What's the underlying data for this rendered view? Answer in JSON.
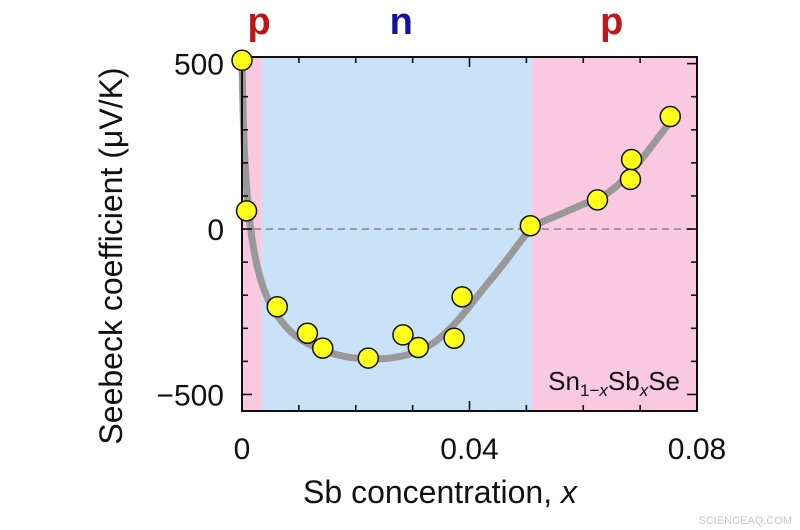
{
  "chart_data": {
    "type": "scatter",
    "xlabel": "Sb concentration, ",
    "xlabel_var": "x",
    "ylabel": "Seebeck coefficient (μV/K)",
    "xlim": [
      0,
      0.08
    ],
    "ylim": [
      -550,
      520
    ],
    "x_ticks": [
      0,
      0.04,
      0.08
    ],
    "x_tick_labels": [
      "0",
      "0.04",
      "0.08"
    ],
    "y_ticks": [
      500,
      0,
      -500
    ],
    "y_tick_labels": [
      "500",
      "0",
      "−500"
    ],
    "zero_line": "dashed",
    "regions": [
      {
        "label": "p",
        "from": 0,
        "to": 0.0035,
        "color": "#f9c9e1",
        "label_color": "#c0141b"
      },
      {
        "label": "n",
        "from": 0.0035,
        "to": 0.051,
        "color": "#c9e2f8",
        "label_color": "#13139c"
      },
      {
        "label": "p",
        "from": 0.051,
        "to": 0.08,
        "color": "#f9c9e1",
        "label_color": "#c0141b"
      }
    ],
    "region_label_positions": [
      0.003,
      0.028,
      0.065
    ],
    "series": [
      {
        "marker_color": "#ffff1a",
        "marker_edge": "#111111",
        "points": [
          {
            "x": 0.0,
            "y": 510
          },
          {
            "x": 0.0008,
            "y": 55
          },
          {
            "x": 0.0062,
            "y": -235
          },
          {
            "x": 0.0115,
            "y": -315
          },
          {
            "x": 0.0142,
            "y": -360
          },
          {
            "x": 0.0222,
            "y": -390
          },
          {
            "x": 0.0283,
            "y": -320
          },
          {
            "x": 0.031,
            "y": -358
          },
          {
            "x": 0.0373,
            "y": -330
          },
          {
            "x": 0.0387,
            "y": -205
          },
          {
            "x": 0.0507,
            "y": 10
          },
          {
            "x": 0.0625,
            "y": 88
          },
          {
            "x": 0.0683,
            "y": 150
          },
          {
            "x": 0.0685,
            "y": 210
          },
          {
            "x": 0.0753,
            "y": 340
          }
        ]
      }
    ],
    "guide_curve": {
      "color": "#999999",
      "points": [
        [
          0.0,
          500
        ],
        [
          0.0004,
          250
        ],
        [
          0.0012,
          50
        ],
        [
          0.0025,
          -100
        ],
        [
          0.0045,
          -210
        ],
        [
          0.007,
          -280
        ],
        [
          0.01,
          -330
        ],
        [
          0.014,
          -365
        ],
        [
          0.018,
          -385
        ],
        [
          0.022,
          -392
        ],
        [
          0.026,
          -390
        ],
        [
          0.03,
          -375
        ],
        [
          0.034,
          -340
        ],
        [
          0.038,
          -275
        ],
        [
          0.042,
          -190
        ],
        [
          0.046,
          -105
        ],
        [
          0.05,
          -15
        ],
        [
          0.052,
          15
        ],
        [
          0.056,
          45
        ],
        [
          0.06,
          75
        ],
        [
          0.064,
          105
        ],
        [
          0.068,
          165
        ],
        [
          0.072,
          250
        ],
        [
          0.0755,
          330
        ]
      ]
    },
    "annotation": {
      "base": "Sn",
      "sub1": "1−",
      "sub1_var": "x",
      "mid": "Sb",
      "sub2_var": "x",
      "end": "Se"
    }
  },
  "watermark": "SCIENCEAQ.COM"
}
